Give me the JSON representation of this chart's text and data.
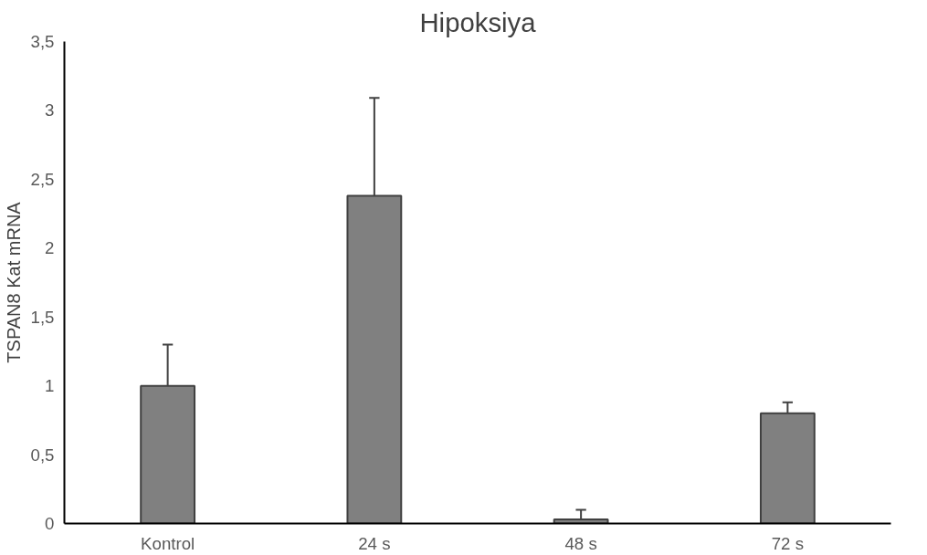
{
  "chart_data": {
    "type": "bar",
    "title": "Hipoksiya",
    "ylabel": "TSPAN8 Kat mRNA",
    "categories": [
      "Kontrol",
      "24 s",
      "48 s",
      "72 s"
    ],
    "values": [
      1.0,
      2.38,
      0.03,
      0.8
    ],
    "errors": [
      [
        1.0,
        1.3
      ],
      [
        2.38,
        3.09
      ],
      [
        0.03,
        0.1
      ],
      [
        0.8,
        0.88
      ]
    ],
    "color": "#808080",
    "ylim": [
      0,
      3.5
    ],
    "yticks": [
      0,
      {
        "value": 0.5,
        "label": "0,5"
      },
      1,
      {
        "value": 1.5,
        "label": "1,5"
      },
      2,
      {
        "value": 2.5,
        "label": "2,5"
      },
      3,
      {
        "value": 3.5,
        "label": "3,5"
      }
    ],
    "grid": false
  }
}
